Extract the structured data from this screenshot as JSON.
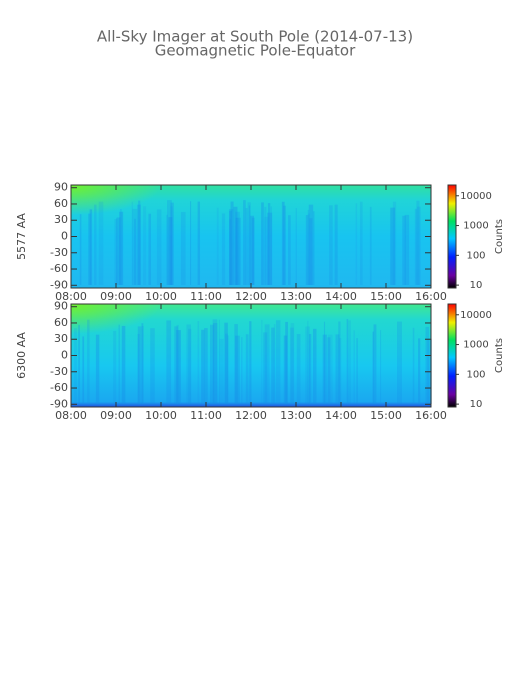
{
  "title": "All-Sky Imager at South Pole (2014-07-13)",
  "subtitle": "Geomagnetic Pole-Equator",
  "chart_data": [
    {
      "type": "heatmap",
      "ylabel": "5577 AA",
      "ylim": [
        -95,
        95
      ],
      "yticks": [
        90,
        60,
        30,
        0,
        -30,
        -60,
        -90
      ],
      "xlim": [
        8,
        16
      ],
      "xticks": [
        {
          "value": 8,
          "label": "08:00"
        },
        {
          "value": 9,
          "label": "09:00"
        },
        {
          "value": 10,
          "label": "10:00"
        },
        {
          "value": 11,
          "label": "11:00"
        },
        {
          "value": 12,
          "label": "12:00"
        },
        {
          "value": 13,
          "label": "13:00"
        },
        {
          "value": 14,
          "label": "14:00"
        },
        {
          "value": 15,
          "label": "15:00"
        },
        {
          "value": 16,
          "label": "16:00"
        }
      ],
      "colorbar": {
        "label": "Counts",
        "scale": "log",
        "lim": [
          8,
          23000
        ],
        "ticks": [
          10,
          100,
          1000,
          10000
        ]
      }
    },
    {
      "type": "heatmap",
      "ylabel": "6300 AA",
      "ylim": [
        -95,
        95
      ],
      "yticks": [
        90,
        60,
        30,
        0,
        -30,
        -60,
        -90
      ],
      "xlim": [
        8,
        16
      ],
      "xticks": [
        {
          "value": 8,
          "label": "08:00"
        },
        {
          "value": 9,
          "label": "09:00"
        },
        {
          "value": 10,
          "label": "10:00"
        },
        {
          "value": 11,
          "label": "11:00"
        },
        {
          "value": 12,
          "label": "12:00"
        },
        {
          "value": 13,
          "label": "13:00"
        },
        {
          "value": 14,
          "label": "14:00"
        },
        {
          "value": 15,
          "label": "15:00"
        },
        {
          "value": 16,
          "label": "16:00"
        }
      ],
      "colorbar": {
        "label": "Counts",
        "scale": "log",
        "lim": [
          8,
          23000
        ],
        "ticks": [
          10,
          100,
          1000,
          10000
        ]
      }
    }
  ]
}
